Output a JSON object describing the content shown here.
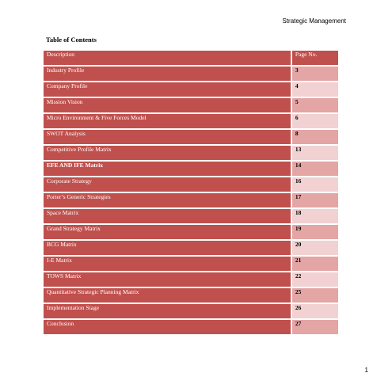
{
  "header": {
    "text": "Strategic Management"
  },
  "toc": {
    "title": "Table of Contents",
    "columns": {
      "description": "Description",
      "page": "Page No."
    },
    "rows": [
      {
        "description": "Industry Profile",
        "page": "3",
        "bold": false
      },
      {
        "description": "Company Profile",
        "page": "4",
        "bold": false
      },
      {
        "description": "Mission Vision",
        "page": "5",
        "bold": false
      },
      {
        "description": "Micro Environment & Five Forces Model",
        "page": "6",
        "bold": false
      },
      {
        "description": "SWOT Analysis",
        "page": "8",
        "bold": false
      },
      {
        "description": "Competitive Profile Matrix",
        "page": "13",
        "bold": false
      },
      {
        "description": "EFE AND IFE Matrix",
        "page": "14",
        "bold": true
      },
      {
        "description": "Corporate Strategy",
        "page": "16",
        "bold": false
      },
      {
        "description": "Porter’s Generic Strategies",
        "page": "17",
        "bold": false
      },
      {
        "description": "Space Matrix",
        "page": "18",
        "bold": false
      },
      {
        "description": "Grand Strategy Matrix",
        "page": "19",
        "bold": false
      },
      {
        "description": "BCG Matrix",
        "page": "20",
        "bold": false
      },
      {
        "description": "I-E Matrix",
        "page": "21",
        "bold": false
      },
      {
        "description": "TOWS Matrix",
        "page": "22",
        "bold": false
      },
      {
        "description": "Quantitative Strategic Planning Matrix",
        "page": "25",
        "bold": false
      },
      {
        "description": "Implementation Stage",
        "page": "26",
        "bold": false
      },
      {
        "description": "Conclusion",
        "page": "27",
        "bold": false
      }
    ]
  },
  "footer": {
    "page_number": "1"
  },
  "colors": {
    "header_fill": "#c0504d",
    "row_dark": "#e4a5a5",
    "row_light": "#f1d1d1"
  }
}
